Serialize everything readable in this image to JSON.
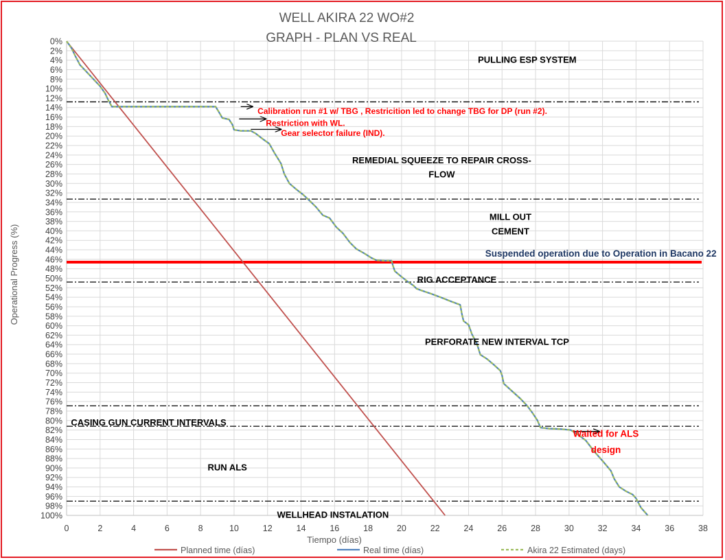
{
  "chart_data": {
    "type": "line",
    "title_line1": "WELL AKIRA 22 WO#2",
    "title_line2": "GRAPH  - PLAN VS REAL",
    "xlabel": "Tiempo (días)",
    "ylabel": "Operational Progress (%)",
    "xlim": [
      0,
      38
    ],
    "ylim": [
      0,
      100
    ],
    "y_reversed": true,
    "x_ticks": [
      0,
      2,
      4,
      6,
      8,
      10,
      12,
      14,
      16,
      18,
      20,
      22,
      24,
      26,
      28,
      30,
      32,
      34,
      36,
      38
    ],
    "y_ticks": [
      0,
      2,
      4,
      6,
      8,
      10,
      12,
      14,
      16,
      18,
      20,
      22,
      24,
      26,
      28,
      30,
      32,
      34,
      36,
      38,
      40,
      42,
      44,
      46,
      48,
      50,
      52,
      54,
      56,
      58,
      60,
      62,
      64,
      66,
      68,
      70,
      72,
      74,
      76,
      78,
      80,
      82,
      84,
      86,
      88,
      90,
      92,
      94,
      96,
      98,
      100
    ],
    "grid": true,
    "legend_position": "bottom",
    "series": [
      {
        "name": "Planned time (días)",
        "color": "#c0504d",
        "style": "solid",
        "points": [
          [
            0,
            0
          ],
          [
            22.6,
            100
          ]
        ]
      },
      {
        "name": "Real time (días)",
        "color": "#4f81bd",
        "style": "solid",
        "points": [
          [
            0,
            0
          ],
          [
            0.3,
            1.5
          ],
          [
            0.5,
            3
          ],
          [
            0.8,
            5
          ],
          [
            1.2,
            6.5
          ],
          [
            1.6,
            8
          ],
          [
            2.0,
            9.5
          ],
          [
            2.3,
            11
          ],
          [
            2.5,
            12.5
          ],
          [
            2.7,
            13.8
          ],
          [
            4,
            13.8
          ],
          [
            6,
            13.8
          ],
          [
            8,
            13.8
          ],
          [
            8.9,
            13.8
          ],
          [
            9.1,
            15
          ],
          [
            9.3,
            16.2
          ],
          [
            9.7,
            16.5
          ],
          [
            9.9,
            17.6
          ],
          [
            10.0,
            18.7
          ],
          [
            10.4,
            18.9
          ],
          [
            11.0,
            18.9
          ],
          [
            11.3,
            19.5
          ],
          [
            11.7,
            20.6
          ],
          [
            12.1,
            21.6
          ],
          [
            12.4,
            23.5
          ],
          [
            12.8,
            25.8
          ],
          [
            13.0,
            28.0
          ],
          [
            13.3,
            30.0
          ],
          [
            13.7,
            31.2
          ],
          [
            14.1,
            32.3
          ],
          [
            14.5,
            33.6
          ],
          [
            14.9,
            35.0
          ],
          [
            15.3,
            36.7
          ],
          [
            15.7,
            37.3
          ],
          [
            16.1,
            39.2
          ],
          [
            16.5,
            40.5
          ],
          [
            16.9,
            42.4
          ],
          [
            17.3,
            43.8
          ],
          [
            17.8,
            44.8
          ],
          [
            18.2,
            45.7
          ],
          [
            18.5,
            46.2
          ],
          [
            19.0,
            46.3
          ],
          [
            19.4,
            46.3
          ],
          [
            19.5,
            47.5
          ],
          [
            19.6,
            48.5
          ],
          [
            20.0,
            49.7
          ],
          [
            20.4,
            50.8
          ],
          [
            20.7,
            51.5
          ],
          [
            20.9,
            52.2
          ],
          [
            21.3,
            52.7
          ],
          [
            21.8,
            53.3
          ],
          [
            22.4,
            54.1
          ],
          [
            22.9,
            54.8
          ],
          [
            23.5,
            55.6
          ],
          [
            23.6,
            57.5
          ],
          [
            23.7,
            59.0
          ],
          [
            24.0,
            59.8
          ],
          [
            24.2,
            61.8
          ],
          [
            24.5,
            63.8
          ],
          [
            24.7,
            66.1
          ],
          [
            25.1,
            67.0
          ],
          [
            25.5,
            68.2
          ],
          [
            25.9,
            69.5
          ],
          [
            26.0,
            70.5
          ],
          [
            26.1,
            72.2
          ],
          [
            26.6,
            73.8
          ],
          [
            27.1,
            75.4
          ],
          [
            27.5,
            76.9
          ],
          [
            27.8,
            78.3
          ],
          [
            28.1,
            79.9
          ],
          [
            28.3,
            81.5
          ],
          [
            28.8,
            81.7
          ],
          [
            29.5,
            81.8
          ],
          [
            30.1,
            82.0
          ],
          [
            30.5,
            82.9
          ],
          [
            31.0,
            84.2
          ],
          [
            31.5,
            86.5
          ],
          [
            32.0,
            88.5
          ],
          [
            32.5,
            90.6
          ],
          [
            32.7,
            92.3
          ],
          [
            33.0,
            94.0
          ],
          [
            33.4,
            94.9
          ],
          [
            33.8,
            95.6
          ],
          [
            34.0,
            96.4
          ],
          [
            34.3,
            98.4
          ],
          [
            34.7,
            100
          ]
        ]
      },
      {
        "name": "Akira 22 Estimated (days)",
        "color": "#9bbb59",
        "style": "dashed",
        "points": [
          [
            0,
            0
          ],
          [
            0.3,
            1.5
          ],
          [
            0.5,
            3
          ],
          [
            0.8,
            5
          ],
          [
            1.2,
            6.5
          ],
          [
            1.6,
            8
          ],
          [
            2.0,
            9.5
          ],
          [
            2.3,
            11
          ],
          [
            2.5,
            12.5
          ],
          [
            2.7,
            13.8
          ],
          [
            4,
            13.8
          ],
          [
            6,
            13.8
          ],
          [
            8,
            13.8
          ],
          [
            8.9,
            13.8
          ],
          [
            9.1,
            15
          ],
          [
            9.3,
            16.2
          ],
          [
            9.7,
            16.5
          ],
          [
            9.9,
            17.6
          ],
          [
            10.0,
            18.7
          ],
          [
            10.4,
            18.9
          ],
          [
            11.0,
            18.9
          ],
          [
            11.3,
            19.5
          ],
          [
            11.7,
            20.6
          ],
          [
            12.1,
            21.6
          ],
          [
            12.4,
            23.5
          ],
          [
            12.8,
            25.8
          ],
          [
            13.0,
            28.0
          ],
          [
            13.3,
            30.0
          ],
          [
            13.7,
            31.2
          ],
          [
            14.1,
            32.3
          ],
          [
            14.5,
            33.6
          ],
          [
            14.9,
            35.0
          ],
          [
            15.3,
            36.7
          ],
          [
            15.7,
            37.3
          ],
          [
            16.1,
            39.2
          ],
          [
            16.5,
            40.5
          ],
          [
            16.9,
            42.4
          ],
          [
            17.3,
            43.8
          ],
          [
            17.8,
            44.8
          ],
          [
            18.2,
            45.7
          ],
          [
            18.5,
            46.2
          ],
          [
            19.0,
            46.3
          ],
          [
            19.4,
            46.3
          ],
          [
            19.5,
            47.5
          ],
          [
            19.6,
            48.5
          ],
          [
            20.0,
            49.7
          ],
          [
            20.4,
            50.8
          ],
          [
            20.7,
            51.5
          ],
          [
            20.9,
            52.2
          ],
          [
            21.3,
            52.7
          ],
          [
            21.8,
            53.3
          ],
          [
            22.4,
            54.1
          ],
          [
            22.9,
            54.8
          ],
          [
            23.5,
            55.6
          ],
          [
            23.6,
            57.5
          ],
          [
            23.7,
            59.0
          ],
          [
            24.0,
            59.8
          ],
          [
            24.2,
            61.8
          ],
          [
            24.5,
            63.8
          ],
          [
            24.7,
            66.1
          ],
          [
            25.1,
            67.0
          ],
          [
            25.5,
            68.2
          ],
          [
            25.9,
            69.5
          ],
          [
            26.0,
            70.5
          ],
          [
            26.1,
            72.2
          ],
          [
            26.6,
            73.8
          ],
          [
            27.1,
            75.4
          ],
          [
            27.5,
            76.9
          ],
          [
            27.8,
            78.3
          ],
          [
            28.1,
            79.9
          ],
          [
            28.3,
            81.5
          ],
          [
            28.8,
            81.7
          ],
          [
            29.5,
            81.8
          ],
          [
            30.1,
            82.0
          ],
          [
            30.5,
            82.9
          ],
          [
            31.0,
            84.2
          ],
          [
            31.5,
            86.5
          ],
          [
            32.0,
            88.5
          ],
          [
            32.5,
            90.6
          ],
          [
            32.7,
            92.3
          ],
          [
            33.0,
            94.0
          ],
          [
            33.4,
            94.9
          ],
          [
            33.8,
            95.6
          ],
          [
            34.0,
            96.4
          ],
          [
            34.3,
            98.4
          ],
          [
            34.7,
            100
          ]
        ]
      }
    ],
    "phase_boundaries_pct": [
      12.8,
      33.3,
      50.8,
      76.9,
      81.2,
      97.0
    ],
    "suspension_line_pct": 46.6,
    "phase_labels": [
      {
        "text": "PULLING ESP SYSTEM",
        "x_days": 27.5,
        "y_pct": 3.8
      },
      {
        "text": "REMEDIAL SQUEEZE TO REPAIR CROSS-",
        "x_days": 22.4,
        "y_pct": 25.0
      },
      {
        "text": "FLOW",
        "x_days": 22.4,
        "y_pct": 28.0
      },
      {
        "text": "MILL OUT",
        "x_days": 26.5,
        "y_pct": 37.0
      },
      {
        "text": "CEMENT",
        "x_days": 26.5,
        "y_pct": 40.0
      },
      {
        "text": "RIG ACCEPTANCE",
        "x_days": 23.3,
        "y_pct": 50.2
      },
      {
        "text": "PERFORATE NEW INTERVAL TCP",
        "x_days": 25.7,
        "y_pct": 63.3
      },
      {
        "text": "CASING GUN CURRENT INTERVALS",
        "x_days": 4.9,
        "y_pct": 80.3
      },
      {
        "text": "RUN ALS",
        "x_days": 9.6,
        "y_pct": 89.8
      },
      {
        "text": "WELLHEAD INSTALATION",
        "x_days": 15.9,
        "y_pct": 99.8
      }
    ],
    "annotations": [
      {
        "text": "Calibration run #1 w/ TBG , Restricition led to change TBG for DP (run #2).",
        "x_days": 11.4,
        "y_pct": 14.7,
        "color": "#ff0000",
        "arrow_from": [
          10.4,
          13.8
        ],
        "arrow_to": [
          11.1,
          13.8
        ]
      },
      {
        "text": "Restriction with WL.",
        "x_days": 11.9,
        "y_pct": 17.2,
        "color": "#ff0000",
        "arrow_from": [
          10.3,
          16.4
        ],
        "arrow_to": [
          11.9,
          16.4
        ]
      },
      {
        "text": "Gear selector failure (IND).",
        "x_days": 12.8,
        "y_pct": 19.3,
        "color": "#ff0000",
        "arrow_from": [
          11.0,
          18.6
        ],
        "arrow_to": [
          12.8,
          18.6
        ]
      },
      {
        "text": "Suspended operation due to Operation in Bacano 22",
        "x_days": 31.9,
        "y_pct": 44.8,
        "color": "#1f3864"
      },
      {
        "text": "Waited for ALS",
        "x_days": 32.2,
        "y_pct": 82.8,
        "color": "#ff0000",
        "arrow_from": [
          30.3,
          82.3
        ],
        "arrow_to": [
          31.8,
          82.3
        ]
      },
      {
        "text": "design",
        "x_days": 32.2,
        "y_pct": 86.2,
        "color": "#ff0000"
      }
    ]
  }
}
